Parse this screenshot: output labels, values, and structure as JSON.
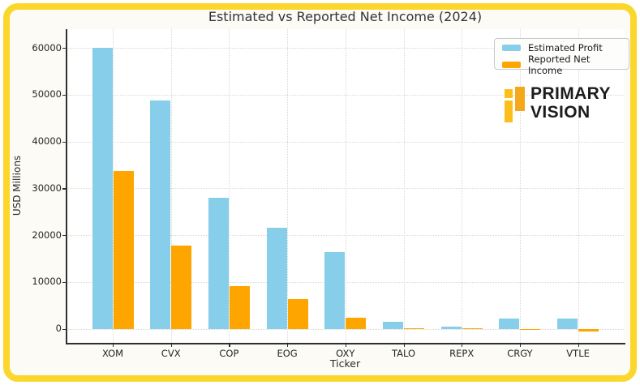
{
  "chart_data": {
    "type": "bar",
    "title": "Estimated vs Reported Net Income (2024)",
    "xlabel": "Ticker",
    "ylabel": "USD Millions",
    "categories": [
      "XOM",
      "CVX",
      "COP",
      "EOG",
      "OXY",
      "TALO",
      "REPX",
      "CRGY",
      "VTLE"
    ],
    "series": [
      {
        "name": "Estimated Profit",
        "color": "#87CEEB",
        "values": [
          60000,
          48700,
          28000,
          21600,
          16400,
          1500,
          500,
          2250,
          2250
        ]
      },
      {
        "name": "Reported Net Income",
        "color": "#FFA500",
        "values": [
          33700,
          17700,
          9200,
          6400,
          2350,
          150,
          150,
          -150,
          -550
        ]
      }
    ],
    "ylim": [
      -3000,
      64000
    ],
    "yticks": [
      0,
      10000,
      20000,
      30000,
      40000,
      50000,
      60000
    ],
    "grid": true,
    "legend_position": "upper right"
  },
  "branding": {
    "logo_line1": "PRIMARY",
    "logo_line2": "VISION",
    "logo_mark_color_left": "#FCBE1B",
    "logo_mark_color_right": "#F6A81C",
    "logo_text_color": "#1C1C1C"
  },
  "frame": {
    "border_color": "#FCD72B"
  }
}
